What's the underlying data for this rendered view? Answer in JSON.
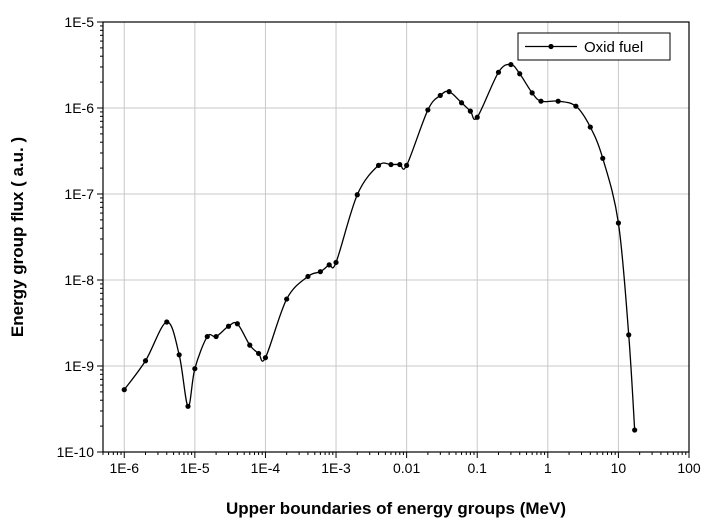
{
  "chart_data": {
    "type": "line",
    "title": "",
    "xlabel": "Upper boundaries of energy groups (MeV)",
    "ylabel": "Energy group flux  ( a.u. )",
    "xscale": "log",
    "yscale": "log",
    "xlim": [
      5e-07,
      100
    ],
    "ylim": [
      1e-10,
      1e-05
    ],
    "x_ticks": [
      {
        "value": 1e-06,
        "label": "1E-6"
      },
      {
        "value": 1e-05,
        "label": "1E-5"
      },
      {
        "value": 0.0001,
        "label": "1E-4"
      },
      {
        "value": 0.001,
        "label": "1E-3"
      },
      {
        "value": 0.01,
        "label": "0.01"
      },
      {
        "value": 0.1,
        "label": "0.1"
      },
      {
        "value": 1,
        "label": "1"
      },
      {
        "value": 10,
        "label": "10"
      },
      {
        "value": 100,
        "label": "100"
      }
    ],
    "y_ticks": [
      {
        "value": 1e-10,
        "label": "1E-10"
      },
      {
        "value": 1e-09,
        "label": "1E-9"
      },
      {
        "value": 1e-08,
        "label": "1E-8"
      },
      {
        "value": 1e-07,
        "label": "1E-7"
      },
      {
        "value": 1e-06,
        "label": "1E-6"
      },
      {
        "value": 1e-05,
        "label": "1E-5"
      }
    ],
    "grid": true,
    "legend_position": "top-right",
    "series": [
      {
        "name": "Oxid fuel",
        "color": "#000000",
        "marker": "circle",
        "x": [
          1e-06,
          2e-06,
          4e-06,
          6e-06,
          8e-06,
          1e-05,
          1.5e-05,
          2e-05,
          3e-05,
          4e-05,
          6e-05,
          8e-05,
          0.0001,
          0.0002,
          0.0004,
          0.0006,
          0.0008,
          0.001,
          0.002,
          0.004,
          0.006,
          0.008,
          0.01,
          0.02,
          0.03,
          0.04,
          0.06,
          0.08,
          0.1,
          0.2,
          0.3,
          0.4,
          0.6,
          0.8,
          1.4,
          2.5,
          4,
          6,
          10,
          14,
          17
        ],
        "y": [
          5.3e-10,
          1.15e-09,
          3.25e-09,
          1.35e-09,
          3.4e-10,
          9.3e-10,
          2.2e-09,
          2.2e-09,
          2.9e-09,
          3.1e-09,
          1.75e-09,
          1.4e-09,
          1.25e-09,
          6e-09,
          1.1e-08,
          1.25e-08,
          1.5e-08,
          1.6e-08,
          9.8e-08,
          2.15e-07,
          2.2e-07,
          2.2e-07,
          2.15e-07,
          9.5e-07,
          1.4e-06,
          1.55e-06,
          1.15e-06,
          9.2e-07,
          7.8e-07,
          2.6e-06,
          3.2e-06,
          2.5e-06,
          1.5e-06,
          1.2e-06,
          1.2e-06,
          1.05e-06,
          6e-07,
          2.6e-07,
          4.6e-08,
          2.3e-09,
          1.8e-10
        ]
      }
    ]
  }
}
